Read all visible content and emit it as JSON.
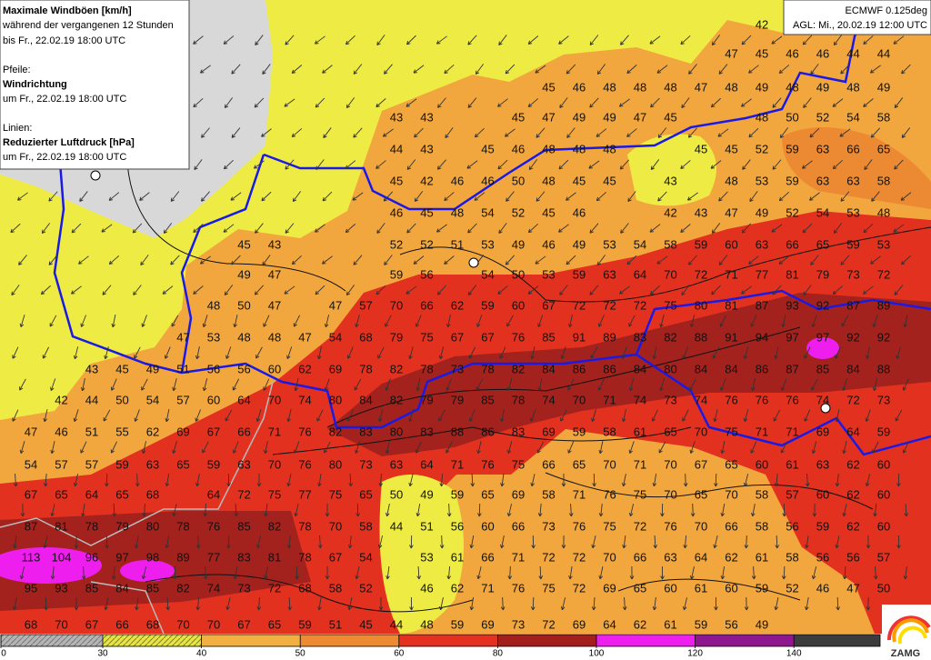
{
  "info_box": {
    "lines": [
      "Maximale Windböen [km/h]",
      "während der vergangenen 12 Stunden",
      "bis Fr., 22.02.19 18:00 UTC",
      "Pfeile:",
      "Windrichtung",
      "um Fr., 22.02.19 18:00 UTC",
      "Linien:",
      "Reduzierter Luftdruck [hPa]",
      "um Fr., 22.02.19 18:00 UTC"
    ]
  },
  "model_box": {
    "lines": [
      "ECMWF 0.125deg",
      "AGL: Mi., 20.02.19 12:00 UTC"
    ]
  },
  "logo": "ZAMG",
  "map": {
    "rows": [
      [
        null,
        null,
        null,
        null,
        null,
        null,
        null,
        null,
        null,
        null,
        null,
        null,
        null,
        null,
        null,
        null,
        null,
        null,
        null,
        null,
        null,
        null,
        null,
        null,
        42,
        null,
        null,
        null,
        null
      ],
      [
        null,
        null,
        null,
        null,
        null,
        null,
        null,
        null,
        null,
        null,
        null,
        null,
        null,
        null,
        null,
        null,
        null,
        null,
        null,
        null,
        null,
        null,
        null,
        47,
        45,
        46,
        46,
        44,
        44
      ],
      [
        null,
        null,
        null,
        null,
        null,
        null,
        null,
        null,
        null,
        null,
        null,
        null,
        null,
        null,
        null,
        null,
        null,
        45,
        46,
        48,
        48,
        48,
        47,
        48,
        49,
        48,
        49,
        48,
        49
      ],
      [
        null,
        null,
        null,
        null,
        null,
        null,
        null,
        null,
        null,
        null,
        null,
        null,
        43,
        43,
        null,
        null,
        45,
        47,
        49,
        49,
        47,
        45,
        null,
        null,
        48,
        50,
        52,
        54,
        58
      ],
      [
        null,
        null,
        null,
        null,
        null,
        null,
        null,
        null,
        null,
        null,
        null,
        null,
        44,
        43,
        null,
        45,
        46,
        48,
        48,
        48,
        null,
        null,
        45,
        45,
        52,
        59,
        63,
        66,
        65
      ],
      [
        null,
        null,
        null,
        null,
        null,
        null,
        null,
        null,
        null,
        null,
        null,
        null,
        45,
        42,
        46,
        46,
        50,
        48,
        45,
        45,
        null,
        43,
        null,
        48,
        53,
        59,
        63,
        63,
        58
      ],
      [
        null,
        null,
        null,
        null,
        null,
        null,
        null,
        null,
        null,
        null,
        null,
        null,
        46,
        45,
        48,
        54,
        52,
        45,
        46,
        null,
        null,
        42,
        43,
        47,
        49,
        52,
        54,
        53,
        48
      ],
      [
        null,
        null,
        null,
        null,
        null,
        null,
        null,
        45,
        43,
        null,
        null,
        null,
        52,
        52,
        51,
        53,
        49,
        46,
        49,
        53,
        54,
        58,
        59,
        60,
        63,
        66,
        65,
        59,
        53
      ],
      [
        null,
        null,
        null,
        null,
        null,
        null,
        null,
        49,
        47,
        null,
        null,
        null,
        59,
        56,
        null,
        54,
        50,
        53,
        59,
        63,
        64,
        70,
        72,
        71,
        77,
        81,
        79,
        73,
        72
      ],
      [
        null,
        null,
        null,
        null,
        null,
        null,
        48,
        50,
        47,
        null,
        47,
        57,
        70,
        66,
        62,
        59,
        60,
        67,
        72,
        72,
        72,
        75,
        80,
        81,
        87,
        93,
        92,
        87,
        89
      ],
      [
        null,
        null,
        null,
        null,
        null,
        47,
        53,
        48,
        48,
        47,
        54,
        68,
        79,
        75,
        67,
        67,
        76,
        85,
        91,
        89,
        83,
        82,
        88,
        91,
        94,
        97,
        97,
        92,
        92
      ],
      [
        null,
        null,
        43,
        45,
        49,
        51,
        56,
        56,
        60,
        62,
        69,
        78,
        82,
        78,
        73,
        78,
        82,
        84,
        86,
        86,
        84,
        80,
        84,
        84,
        86,
        87,
        85,
        84,
        88
      ],
      [
        null,
        42,
        44,
        50,
        54,
        57,
        60,
        64,
        70,
        74,
        80,
        84,
        82,
        79,
        79,
        85,
        78,
        74,
        70,
        71,
        74,
        73,
        74,
        76,
        76,
        76,
        74,
        72,
        73
      ],
      [
        47,
        46,
        51,
        55,
        62,
        69,
        67,
        66,
        71,
        76,
        82,
        83,
        80,
        83,
        88,
        86,
        83,
        69,
        59,
        58,
        61,
        65,
        70,
        75,
        71,
        71,
        69,
        64,
        59
      ],
      [
        54,
        57,
        57,
        59,
        63,
        65,
        59,
        63,
        70,
        76,
        80,
        73,
        63,
        64,
        71,
        76,
        75,
        66,
        65,
        70,
        71,
        70,
        67,
        65,
        60,
        61,
        63,
        62,
        60
      ],
      [
        67,
        65,
        64,
        65,
        68,
        null,
        64,
        72,
        75,
        77,
        75,
        65,
        50,
        49,
        59,
        65,
        69,
        58,
        71,
        76,
        75,
        70,
        65,
        70,
        58,
        57,
        60,
        62,
        60
      ],
      [
        87,
        81,
        78,
        79,
        80,
        78,
        76,
        85,
        82,
        78,
        70,
        58,
        44,
        51,
        56,
        60,
        66,
        73,
        76,
        75,
        72,
        76,
        70,
        66,
        58,
        56,
        59,
        62,
        60
      ],
      [
        113,
        104,
        96,
        97,
        98,
        89,
        77,
        83,
        81,
        78,
        67,
        54,
        null,
        53,
        61,
        66,
        71,
        72,
        72,
        70,
        66,
        63,
        64,
        62,
        61,
        58,
        56,
        56,
        57
      ],
      [
        95,
        93,
        85,
        84,
        85,
        82,
        74,
        73,
        72,
        68,
        58,
        52,
        null,
        46,
        62,
        71,
        76,
        75,
        72,
        69,
        65,
        60,
        61,
        60,
        59,
        52,
        46,
        47,
        50
      ],
      [
        68,
        70,
        67,
        66,
        68,
        70,
        70,
        67,
        65,
        59,
        51,
        45,
        44,
        48,
        59,
        69,
        73,
        72,
        69,
        64,
        62,
        61,
        59,
        56,
        49,
        null,
        null,
        null,
        null
      ]
    ]
  },
  "legend": {
    "ticks": [
      0,
      30,
      40,
      50,
      60,
      80,
      100,
      120,
      140
    ],
    "colors": [
      "#b4b4b4",
      "#e6e63c",
      "#f2b040",
      "#ee8a32",
      "#e3301f",
      "#a21f1c",
      "#ee1fee",
      "#8e168e",
      "#3c3c3c"
    ]
  }
}
